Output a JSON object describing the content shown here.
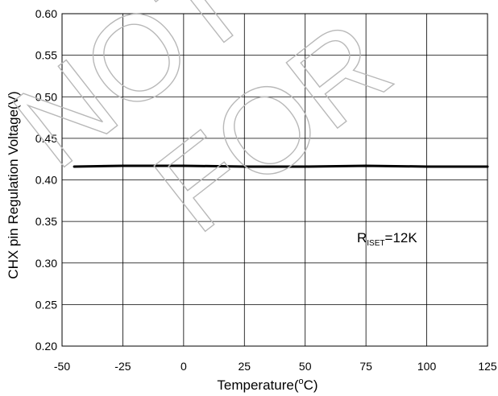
{
  "chart_data": {
    "type": "line",
    "title": "",
    "xlabel": "Temperature(",
    "xlabel_sup": "o",
    "xlabel_tail": "C)",
    "ylabel": "CHX pin Regulation Voltage(V)",
    "xlim": [
      -50,
      125
    ],
    "ylim": [
      0.2,
      0.6
    ],
    "x_ticks": [
      -50,
      -25,
      0,
      25,
      50,
      75,
      100,
      125
    ],
    "x_tick_labels": [
      "-50",
      "-25",
      "0",
      "25",
      "50",
      "75",
      "100",
      "125"
    ],
    "y_ticks": [
      0.2,
      0.25,
      0.3,
      0.35,
      0.4,
      0.45,
      0.5,
      0.55,
      0.6
    ],
    "y_tick_labels": [
      "0.20",
      "0.25",
      "0.30",
      "0.35",
      "0.40",
      "0.45",
      "0.50",
      "0.55",
      "0.60"
    ],
    "grid": true,
    "legend": "none",
    "series": [
      {
        "color": "#000000",
        "x": [
          -45,
          -25,
          0,
          25,
          50,
          75,
          100,
          125
        ],
        "y": [
          0.416,
          0.417,
          0.417,
          0.416,
          0.416,
          0.417,
          0.416,
          0.416
        ]
      }
    ],
    "annotation": {
      "main": "R",
      "sub": "ISET",
      "tail": "=12K"
    }
  },
  "watermark": {
    "texts": [
      "NOT",
      "FOR"
    ],
    "color": "#b8b8b8"
  }
}
